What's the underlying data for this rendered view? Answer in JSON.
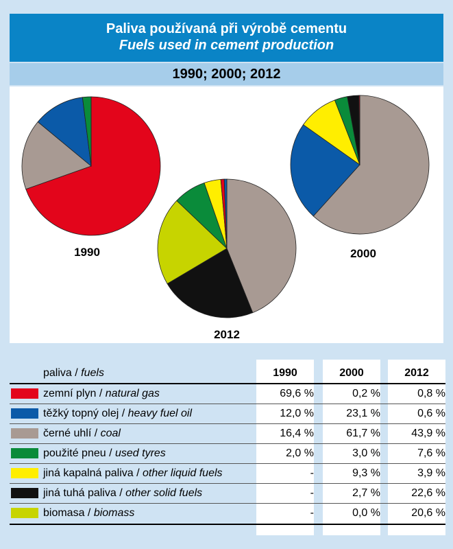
{
  "title": {
    "cz": "Paliva používaná při výrobě cementu",
    "en": "Fuels used in cement production",
    "years": "1990; 2000; 2012"
  },
  "table": {
    "header_cz": "paliva",
    "header_sep": " / ",
    "header_en": "fuels",
    "col_years": [
      "1990",
      "2000",
      "2012"
    ],
    "rows": [
      {
        "cz": "zemní plyn",
        "en": "natural gas",
        "color": "#e3051b",
        "v": [
          "69,6 %",
          "0,2 %",
          "0,8 %"
        ]
      },
      {
        "cz": "těžký topný olej",
        "en": "heavy fuel oil",
        "color": "#0b5aa8",
        "v": [
          "12,0 %",
          "23,1 %",
          "0,6 %"
        ]
      },
      {
        "cz": "černé uhlí",
        "en": "coal",
        "color": "#a89a93",
        "v": [
          "16,4 %",
          "61,7 %",
          "43,9 %"
        ]
      },
      {
        "cz": "použité pneu",
        "en": "used tyres",
        "color": "#0a8b3a",
        "v": [
          "2,0 %",
          "3,0 %",
          "7,6 %"
        ]
      },
      {
        "cz": "jiná kapalná paliva",
        "en": "other liquid fuels",
        "color": "#ffee00",
        "v": [
          "-",
          "9,3 %",
          "3,9 %"
        ]
      },
      {
        "cz": "jiná tuhá paliva",
        "en": "other solid fuels",
        "color": "#111111",
        "v": [
          "-",
          "2,7 %",
          "22,6 %"
        ]
      },
      {
        "cz": "biomasa",
        "en": "biomass",
        "color": "#c7d400",
        "v": [
          "-",
          "0,0 %",
          "20,6 %"
        ]
      }
    ]
  },
  "chart_data": [
    {
      "type": "pie",
      "title": "1990",
      "labels": [
        "zemní plyn / natural gas",
        "těžký topný olej / heavy fuel oil",
        "černé uhlí / coal",
        "použité pneu / used tyres",
        "jiná kapalná paliva / other liquid fuels",
        "jiná tuhá paliva / other solid fuels",
        "biomasa / biomass"
      ],
      "values": [
        69.6,
        12.0,
        16.4,
        2.0,
        0,
        0,
        0
      ],
      "colors": [
        "#e3051b",
        "#0b5aa8",
        "#a89a93",
        "#0a8b3a",
        "#ffee00",
        "#111111",
        "#c7d400"
      ]
    },
    {
      "type": "pie",
      "title": "2000",
      "labels": [
        "zemní plyn / natural gas",
        "těžký topný olej / heavy fuel oil",
        "černé uhlí / coal",
        "použité pneu / used tyres",
        "jiná kapalná paliva / other liquid fuels",
        "jiná tuhá paliva / other solid fuels",
        "biomasa / biomass"
      ],
      "values": [
        0.2,
        23.1,
        61.7,
        3.0,
        9.3,
        2.7,
        0.0
      ],
      "colors": [
        "#e3051b",
        "#0b5aa8",
        "#a89a93",
        "#0a8b3a",
        "#ffee00",
        "#111111",
        "#c7d400"
      ]
    },
    {
      "type": "pie",
      "title": "2012",
      "labels": [
        "zemní plyn / natural gas",
        "těžký topný olej / heavy fuel oil",
        "černé uhlí / coal",
        "použité pneu / used tyres",
        "jiná kapalná paliva / other liquid fuels",
        "jiná tuhá paliva / other solid fuels",
        "biomasa / biomass"
      ],
      "values": [
        0.8,
        0.6,
        43.9,
        7.6,
        3.9,
        22.6,
        20.6
      ],
      "colors": [
        "#e3051b",
        "#0b5aa8",
        "#a89a93",
        "#0a8b3a",
        "#ffee00",
        "#111111",
        "#c7d400"
      ]
    }
  ]
}
